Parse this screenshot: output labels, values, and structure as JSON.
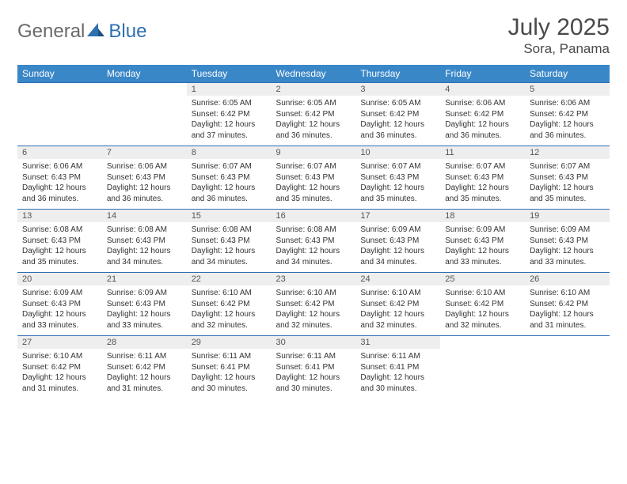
{
  "brand": {
    "part1": "General",
    "part2": "Blue"
  },
  "title": "July 2025",
  "location": "Sora, Panama",
  "colors": {
    "header_bg": "#3a87c8",
    "header_text": "#ffffff",
    "daynum_bg": "#eeeeee",
    "border": "#2f6fb0",
    "text": "#333333",
    "brand_gray": "#6a6a6a",
    "brand_blue": "#2f6fb0"
  },
  "weekdays": [
    "Sunday",
    "Monday",
    "Tuesday",
    "Wednesday",
    "Thursday",
    "Friday",
    "Saturday"
  ],
  "weeks": [
    [
      {
        "n": "",
        "sr": "",
        "ss": "",
        "dl": ""
      },
      {
        "n": "",
        "sr": "",
        "ss": "",
        "dl": ""
      },
      {
        "n": "1",
        "sr": "Sunrise: 6:05 AM",
        "ss": "Sunset: 6:42 PM",
        "dl": "Daylight: 12 hours and 37 minutes."
      },
      {
        "n": "2",
        "sr": "Sunrise: 6:05 AM",
        "ss": "Sunset: 6:42 PM",
        "dl": "Daylight: 12 hours and 36 minutes."
      },
      {
        "n": "3",
        "sr": "Sunrise: 6:05 AM",
        "ss": "Sunset: 6:42 PM",
        "dl": "Daylight: 12 hours and 36 minutes."
      },
      {
        "n": "4",
        "sr": "Sunrise: 6:06 AM",
        "ss": "Sunset: 6:42 PM",
        "dl": "Daylight: 12 hours and 36 minutes."
      },
      {
        "n": "5",
        "sr": "Sunrise: 6:06 AM",
        "ss": "Sunset: 6:42 PM",
        "dl": "Daylight: 12 hours and 36 minutes."
      }
    ],
    [
      {
        "n": "6",
        "sr": "Sunrise: 6:06 AM",
        "ss": "Sunset: 6:43 PM",
        "dl": "Daylight: 12 hours and 36 minutes."
      },
      {
        "n": "7",
        "sr": "Sunrise: 6:06 AM",
        "ss": "Sunset: 6:43 PM",
        "dl": "Daylight: 12 hours and 36 minutes."
      },
      {
        "n": "8",
        "sr": "Sunrise: 6:07 AM",
        "ss": "Sunset: 6:43 PM",
        "dl": "Daylight: 12 hours and 36 minutes."
      },
      {
        "n": "9",
        "sr": "Sunrise: 6:07 AM",
        "ss": "Sunset: 6:43 PM",
        "dl": "Daylight: 12 hours and 35 minutes."
      },
      {
        "n": "10",
        "sr": "Sunrise: 6:07 AM",
        "ss": "Sunset: 6:43 PM",
        "dl": "Daylight: 12 hours and 35 minutes."
      },
      {
        "n": "11",
        "sr": "Sunrise: 6:07 AM",
        "ss": "Sunset: 6:43 PM",
        "dl": "Daylight: 12 hours and 35 minutes."
      },
      {
        "n": "12",
        "sr": "Sunrise: 6:07 AM",
        "ss": "Sunset: 6:43 PM",
        "dl": "Daylight: 12 hours and 35 minutes."
      }
    ],
    [
      {
        "n": "13",
        "sr": "Sunrise: 6:08 AM",
        "ss": "Sunset: 6:43 PM",
        "dl": "Daylight: 12 hours and 35 minutes."
      },
      {
        "n": "14",
        "sr": "Sunrise: 6:08 AM",
        "ss": "Sunset: 6:43 PM",
        "dl": "Daylight: 12 hours and 34 minutes."
      },
      {
        "n": "15",
        "sr": "Sunrise: 6:08 AM",
        "ss": "Sunset: 6:43 PM",
        "dl": "Daylight: 12 hours and 34 minutes."
      },
      {
        "n": "16",
        "sr": "Sunrise: 6:08 AM",
        "ss": "Sunset: 6:43 PM",
        "dl": "Daylight: 12 hours and 34 minutes."
      },
      {
        "n": "17",
        "sr": "Sunrise: 6:09 AM",
        "ss": "Sunset: 6:43 PM",
        "dl": "Daylight: 12 hours and 34 minutes."
      },
      {
        "n": "18",
        "sr": "Sunrise: 6:09 AM",
        "ss": "Sunset: 6:43 PM",
        "dl": "Daylight: 12 hours and 33 minutes."
      },
      {
        "n": "19",
        "sr": "Sunrise: 6:09 AM",
        "ss": "Sunset: 6:43 PM",
        "dl": "Daylight: 12 hours and 33 minutes."
      }
    ],
    [
      {
        "n": "20",
        "sr": "Sunrise: 6:09 AM",
        "ss": "Sunset: 6:43 PM",
        "dl": "Daylight: 12 hours and 33 minutes."
      },
      {
        "n": "21",
        "sr": "Sunrise: 6:09 AM",
        "ss": "Sunset: 6:43 PM",
        "dl": "Daylight: 12 hours and 33 minutes."
      },
      {
        "n": "22",
        "sr": "Sunrise: 6:10 AM",
        "ss": "Sunset: 6:42 PM",
        "dl": "Daylight: 12 hours and 32 minutes."
      },
      {
        "n": "23",
        "sr": "Sunrise: 6:10 AM",
        "ss": "Sunset: 6:42 PM",
        "dl": "Daylight: 12 hours and 32 minutes."
      },
      {
        "n": "24",
        "sr": "Sunrise: 6:10 AM",
        "ss": "Sunset: 6:42 PM",
        "dl": "Daylight: 12 hours and 32 minutes."
      },
      {
        "n": "25",
        "sr": "Sunrise: 6:10 AM",
        "ss": "Sunset: 6:42 PM",
        "dl": "Daylight: 12 hours and 32 minutes."
      },
      {
        "n": "26",
        "sr": "Sunrise: 6:10 AM",
        "ss": "Sunset: 6:42 PM",
        "dl": "Daylight: 12 hours and 31 minutes."
      }
    ],
    [
      {
        "n": "27",
        "sr": "Sunrise: 6:10 AM",
        "ss": "Sunset: 6:42 PM",
        "dl": "Daylight: 12 hours and 31 minutes."
      },
      {
        "n": "28",
        "sr": "Sunrise: 6:11 AM",
        "ss": "Sunset: 6:42 PM",
        "dl": "Daylight: 12 hours and 31 minutes."
      },
      {
        "n": "29",
        "sr": "Sunrise: 6:11 AM",
        "ss": "Sunset: 6:41 PM",
        "dl": "Daylight: 12 hours and 30 minutes."
      },
      {
        "n": "30",
        "sr": "Sunrise: 6:11 AM",
        "ss": "Sunset: 6:41 PM",
        "dl": "Daylight: 12 hours and 30 minutes."
      },
      {
        "n": "31",
        "sr": "Sunrise: 6:11 AM",
        "ss": "Sunset: 6:41 PM",
        "dl": "Daylight: 12 hours and 30 minutes."
      },
      {
        "n": "",
        "sr": "",
        "ss": "",
        "dl": ""
      },
      {
        "n": "",
        "sr": "",
        "ss": "",
        "dl": ""
      }
    ]
  ]
}
